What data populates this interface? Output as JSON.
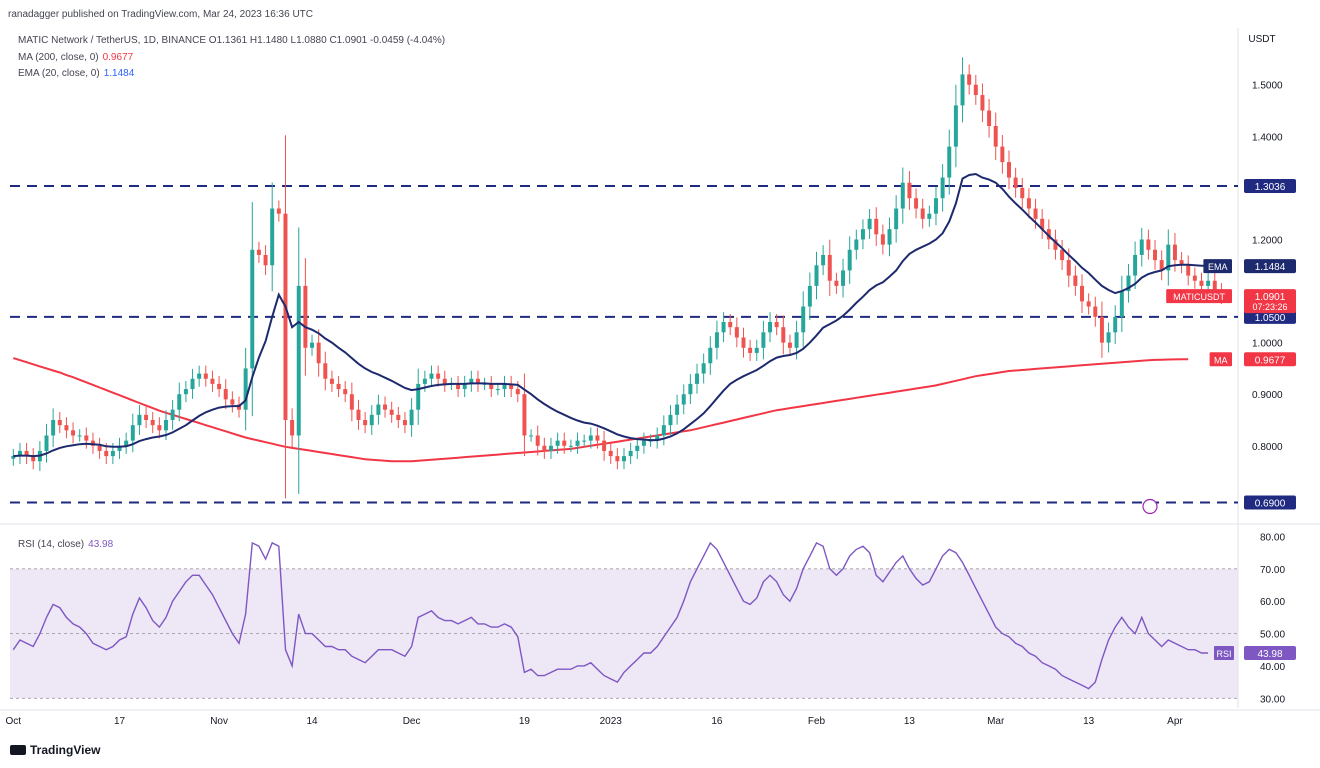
{
  "header": {
    "published": "ranadagger published on TradingView.com, Mar 24, 2023 16:36 UTC",
    "symbol_line": "MATIC Network / TetherUS, 1D, BINANCE  O1.1361  H1.1480  L1.0880  C1.0901  -0.0459 (-4.04%)",
    "ma_label": "MA (200, close, 0)",
    "ma_value": "0.9677",
    "ema_label": "EMA (20, close, 0)",
    "ema_value": "1.1484",
    "rsi_label": "RSI (14, close)",
    "rsi_value": "43.98"
  },
  "logo": "TradingView",
  "colors": {
    "up": "#26a69a",
    "down": "#ef5350",
    "ma": "#f23645",
    "ema": "#1e2a6e",
    "hline": "#1f2a80",
    "rsi": "#7e57c2",
    "rsi_band": "#ede7f6"
  },
  "chart_data": {
    "type": "candlestick",
    "price_axis": {
      "unit": "USDT",
      "ylim": [
        0.66,
        1.61
      ],
      "ticks": [
        "1.5000",
        "1.4000",
        "1.2000",
        "1.0000",
        "0.9000",
        "0.8000"
      ],
      "tick_values": [
        1.5,
        1.4,
        1.2,
        1.0,
        0.9,
        0.8
      ]
    },
    "x_labels": [
      "Oct",
      "17",
      "Nov",
      "14",
      "Dec",
      "19",
      "2023",
      "16",
      "Feb",
      "13",
      "Mar",
      "13",
      "Apr"
    ],
    "x_label_index": [
      0,
      16,
      31,
      45,
      60,
      77,
      90,
      106,
      121,
      135,
      148,
      162,
      175
    ],
    "n_slots": 185,
    "horizontal_levels": [
      {
        "value": 1.3036,
        "label": "1.3036"
      },
      {
        "value": 1.05,
        "label": "1.0500"
      },
      {
        "value": 0.69,
        "label": "0.6900"
      }
    ],
    "badges": [
      {
        "text": "EMA",
        "value": "1.1484",
        "price": 1.1484,
        "color": "#1e2a6e"
      },
      {
        "text": "MATICUSDT",
        "value": "1.0901",
        "sub": "07:23:26",
        "price": 1.0901,
        "color": "#f23645"
      },
      {
        "text": "MA",
        "value": "0.9677",
        "price": 0.9677,
        "color": "#f23645"
      }
    ],
    "close": [
      0.78,
      0.79,
      0.78,
      0.77,
      0.79,
      0.82,
      0.85,
      0.84,
      0.83,
      0.82,
      0.82,
      0.81,
      0.8,
      0.79,
      0.78,
      0.79,
      0.8,
      0.81,
      0.84,
      0.86,
      0.85,
      0.84,
      0.83,
      0.85,
      0.87,
      0.9,
      0.91,
      0.93,
      0.94,
      0.93,
      0.92,
      0.91,
      0.89,
      0.88,
      0.87,
      0.95,
      1.18,
      1.17,
      1.15,
      1.26,
      1.25,
      0.85,
      0.82,
      1.11,
      0.99,
      1.0,
      0.96,
      0.93,
      0.92,
      0.91,
      0.9,
      0.87,
      0.85,
      0.84,
      0.86,
      0.88,
      0.87,
      0.86,
      0.85,
      0.84,
      0.87,
      0.92,
      0.93,
      0.94,
      0.93,
      0.92,
      0.92,
      0.91,
      0.92,
      0.93,
      0.92,
      0.92,
      0.91,
      0.91,
      0.92,
      0.91,
      0.9,
      0.82,
      0.82,
      0.8,
      0.79,
      0.8,
      0.81,
      0.8,
      0.8,
      0.81,
      0.81,
      0.82,
      0.81,
      0.79,
      0.78,
      0.77,
      0.78,
      0.79,
      0.8,
      0.81,
      0.81,
      0.82,
      0.84,
      0.86,
      0.88,
      0.9,
      0.92,
      0.94,
      0.96,
      0.99,
      1.02,
      1.04,
      1.03,
      1.01,
      0.99,
      0.98,
      0.99,
      1.02,
      1.04,
      1.03,
      1.0,
      0.99,
      1.02,
      1.07,
      1.11,
      1.15,
      1.17,
      1.12,
      1.11,
      1.14,
      1.18,
      1.2,
      1.22,
      1.24,
      1.21,
      1.19,
      1.22,
      1.26,
      1.31,
      1.28,
      1.26,
      1.24,
      1.25,
      1.28,
      1.32,
      1.38,
      1.46,
      1.52,
      1.5,
      1.48,
      1.45,
      1.42,
      1.38,
      1.35,
      1.32,
      1.3,
      1.28,
      1.26,
      1.24,
      1.22,
      1.2,
      1.18,
      1.16,
      1.13,
      1.11,
      1.08,
      1.07,
      1.05,
      1.0,
      1.02,
      1.05,
      1.1,
      1.13,
      1.17,
      1.2,
      1.18,
      1.16,
      1.14,
      1.19,
      1.16,
      1.15,
      1.13,
      1.12,
      1.11,
      1.12,
      1.1,
      1.0901
    ],
    "ema20": [
      0.78,
      0.781,
      0.781,
      0.78,
      0.781,
      0.785,
      0.791,
      0.796,
      0.799,
      0.801,
      0.803,
      0.804,
      0.803,
      0.802,
      0.799,
      0.798,
      0.798,
      0.799,
      0.803,
      0.809,
      0.813,
      0.816,
      0.818,
      0.821,
      0.826,
      0.833,
      0.84,
      0.849,
      0.858,
      0.865,
      0.87,
      0.874,
      0.876,
      0.877,
      0.877,
      0.888,
      0.933,
      0.971,
      1.003,
      1.05,
      1.093,
      1.07,
      1.03,
      1.04,
      1.03,
      1.025,
      1.018,
      1.008,
      1.0,
      0.99,
      0.981,
      0.97,
      0.959,
      0.95,
      0.943,
      0.938,
      0.932,
      0.926,
      0.919,
      0.912,
      0.908,
      0.91,
      0.913,
      0.916,
      0.918,
      0.919,
      0.92,
      0.92,
      0.92,
      0.921,
      0.921,
      0.921,
      0.92,
      0.92,
      0.92,
      0.919,
      0.918,
      0.909,
      0.9,
      0.89,
      0.881,
      0.873,
      0.866,
      0.86,
      0.854,
      0.849,
      0.845,
      0.843,
      0.839,
      0.834,
      0.828,
      0.822,
      0.818,
      0.815,
      0.813,
      0.812,
      0.811,
      0.811,
      0.814,
      0.818,
      0.824,
      0.832,
      0.842,
      0.852,
      0.863,
      0.877,
      0.892,
      0.907,
      0.92,
      0.928,
      0.935,
      0.941,
      0.947,
      0.955,
      0.964,
      0.971,
      0.974,
      0.976,
      0.98,
      0.988,
      1.0,
      1.014,
      1.029,
      1.036,
      1.043,
      1.052,
      1.064,
      1.077,
      1.089,
      1.102,
      1.111,
      1.117,
      1.128,
      1.14,
      1.158,
      1.172,
      1.18,
      1.186,
      1.192,
      1.2,
      1.212,
      1.235,
      1.27,
      1.318,
      1.325,
      1.327,
      1.32,
      1.316,
      1.31,
      1.298,
      1.283,
      1.27,
      1.258,
      1.245,
      1.233,
      1.22,
      1.207,
      1.195,
      1.183,
      1.17,
      1.158,
      1.145,
      1.135,
      1.122,
      1.11,
      1.102,
      1.096,
      1.1,
      1.106,
      1.114,
      1.126,
      1.133,
      1.137,
      1.14,
      1.148,
      1.15,
      1.151,
      1.151,
      1.15,
      1.149,
      1.149,
      1.148,
      1.1484
    ],
    "ma200": [
      0.97,
      0.966,
      0.962,
      0.958,
      0.954,
      0.95,
      0.946,
      0.942,
      0.937,
      0.933,
      0.928,
      0.923,
      0.918,
      0.913,
      0.908,
      0.903,
      0.898,
      0.893,
      0.888,
      0.883,
      0.878,
      0.873,
      0.868,
      0.864,
      0.86,
      0.856,
      0.852,
      0.848,
      0.844,
      0.84,
      0.836,
      0.832,
      0.828,
      0.824,
      0.82,
      0.816,
      0.813,
      0.81,
      0.807,
      0.804,
      0.801,
      0.798,
      0.796,
      0.794,
      0.792,
      0.79,
      0.788,
      0.786,
      0.784,
      0.782,
      0.78,
      0.778,
      0.776,
      0.774,
      0.773,
      0.772,
      0.771,
      0.77,
      0.77,
      0.77,
      0.77,
      0.771,
      0.772,
      0.773,
      0.774,
      0.775,
      0.776,
      0.777,
      0.778,
      0.779,
      0.78,
      0.781,
      0.782,
      0.783,
      0.784,
      0.785,
      0.786,
      0.787,
      0.788,
      0.789,
      0.79,
      0.791,
      0.792,
      0.793,
      0.794,
      0.796,
      0.798,
      0.8,
      0.802,
      0.804,
      0.806,
      0.808,
      0.81,
      0.812,
      0.814,
      0.816,
      0.818,
      0.82,
      0.822,
      0.824,
      0.826,
      0.828,
      0.83,
      0.833,
      0.836,
      0.839,
      0.842,
      0.845,
      0.848,
      0.851,
      0.854,
      0.857,
      0.86,
      0.863,
      0.866,
      0.869,
      0.871,
      0.873,
      0.875,
      0.877,
      0.879,
      0.881,
      0.883,
      0.885,
      0.887,
      0.889,
      0.891,
      0.893,
      0.895,
      0.897,
      0.899,
      0.901,
      0.903,
      0.905,
      0.907,
      0.909,
      0.911,
      0.913,
      0.915,
      0.917,
      0.92,
      0.923,
      0.926,
      0.929,
      0.932,
      0.935,
      0.937,
      0.939,
      0.941,
      0.943,
      0.945,
      0.946,
      0.947,
      0.948,
      0.949,
      0.95,
      0.951,
      0.952,
      0.953,
      0.954,
      0.955,
      0.956,
      0.957,
      0.958,
      0.959,
      0.96,
      0.961,
      0.962,
      0.963,
      0.964,
      0.965,
      0.966,
      0.9665,
      0.967,
      0.9673,
      0.9675,
      0.9676,
      0.9677
    ],
    "rsi": {
      "ylim": [
        27,
        82
      ],
      "ticks": [
        "80.00",
        "70.00",
        "60.00",
        "50.00",
        "40.00",
        "30.00"
      ],
      "tick_values": [
        80,
        70,
        60,
        50,
        40,
        30
      ],
      "band": [
        30,
        70
      ],
      "midline": 50,
      "values": [
        45,
        48,
        47,
        46,
        50,
        55,
        59,
        58,
        55,
        53,
        52,
        50,
        47,
        46,
        45,
        46,
        48,
        49,
        56,
        61,
        58,
        54,
        52,
        55,
        60,
        63,
        66,
        68,
        68,
        65,
        62,
        58,
        54,
        50,
        47,
        56,
        78,
        77,
        73,
        78,
        77,
        45,
        40,
        56,
        50,
        50,
        48,
        46,
        46,
        45,
        45,
        43,
        42,
        41,
        43,
        45,
        45,
        45,
        44,
        43,
        46,
        55,
        56,
        57,
        55,
        54,
        54,
        53,
        54,
        55,
        53,
        53,
        52,
        52,
        53,
        52,
        49,
        38,
        39,
        37,
        37,
        38,
        39,
        39,
        39,
        40,
        40,
        41,
        39,
        37,
        36,
        35,
        38,
        40,
        42,
        44,
        44,
        46,
        49,
        52,
        55,
        60,
        66,
        70,
        74,
        78,
        76,
        72,
        68,
        64,
        60,
        59,
        61,
        66,
        68,
        66,
        62,
        60,
        64,
        70,
        74,
        78,
        77,
        70,
        68,
        70,
        74,
        76,
        77,
        75,
        68,
        66,
        69,
        72,
        74,
        70,
        67,
        65,
        66,
        70,
        74,
        76,
        75,
        72,
        68,
        64,
        60,
        56,
        52,
        50,
        49,
        47,
        46,
        44,
        43,
        41,
        40,
        39,
        37,
        36,
        35,
        34,
        33,
        35,
        42,
        48,
        52,
        55,
        52,
        50,
        55,
        50,
        48,
        46,
        48,
        47,
        46,
        45,
        45,
        44,
        43.98
      ]
    }
  }
}
